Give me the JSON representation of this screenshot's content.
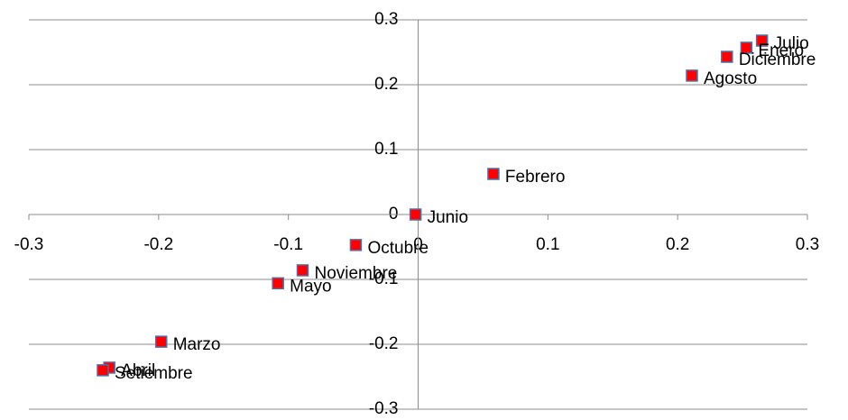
{
  "chart_data": {
    "type": "scatter",
    "point_labels": [
      "Julio",
      "Enero",
      "Diciembre",
      "Agosto",
      "Febrero",
      "Junio",
      "Octubre",
      "Noviembre",
      "Mayo",
      "Marzo",
      "Abril",
      "Setiembre"
    ],
    "x": [
      0.265,
      0.253,
      0.238,
      0.211,
      0.058,
      -0.002,
      -0.048,
      -0.089,
      -0.108,
      -0.198,
      -0.238,
      -0.243
    ],
    "values": [
      0.268,
      0.257,
      0.243,
      0.214,
      0.0625,
      0,
      -0.047,
      -0.086,
      -0.106,
      -0.196,
      -0.236,
      -0.24
    ],
    "color": "#ff0000",
    "edge_color": "#4f6fa8",
    "xlim": [
      -0.3,
      0.3
    ],
    "ylim": [
      -0.3,
      0.3
    ],
    "xticks": [
      -0.3,
      -0.2,
      -0.1,
      0,
      0.1,
      0.2,
      0.3
    ],
    "yticks": [
      -0.3,
      -0.2,
      -0.1,
      0,
      0.1,
      0.2,
      0.3
    ],
    "grid": true
  }
}
